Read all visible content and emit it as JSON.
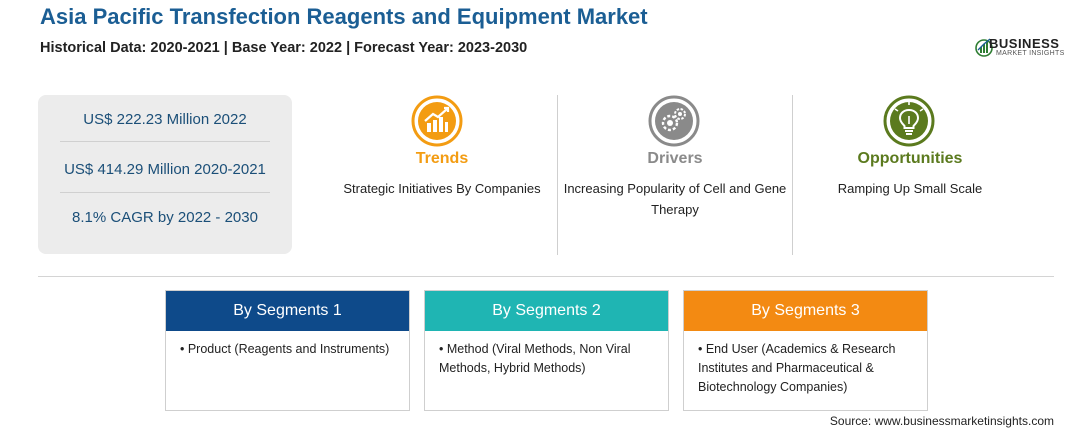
{
  "header": {
    "title": "Asia Pacific Transfection Reagents and Equipment Market",
    "subtitle": "Historical Data: 2020-2021 | Base Year: 2022 | Forecast Year: 2023-2030"
  },
  "logo": {
    "name": "BUSINESS",
    "tagline": "MARKET INSIGHTS"
  },
  "stats": [
    "US$ 222.23 Million 2022",
    "US$ 414.29 Million 2020-2021",
    "8.1% CAGR by 2022 - 2030"
  ],
  "features": [
    {
      "name": "Trends",
      "description": "Strategic Initiatives By Companies",
      "color": "#f39c12",
      "icon": "chart-trend-icon"
    },
    {
      "name": "Drivers",
      "description": "Increasing Popularity of Cell and Gene Therapy",
      "color": "#8a8a8a",
      "icon": "gears-icon"
    },
    {
      "name": "Opportunities",
      "description": "Ramping Up Small Scale",
      "color": "#5b7a1e",
      "icon": "lightbulb-icon"
    }
  ],
  "segments": [
    {
      "title": "By Segments 1",
      "item": "• Product (Reagents and Instruments)",
      "color": "#0e4a8a"
    },
    {
      "title": "By Segments 2",
      "item": "• Method (Viral Methods, Non Viral Methods, Hybrid Methods)",
      "color": "#1fb5b3"
    },
    {
      "title": "By Segments 3",
      "item": "• End User (Academics & Research Institutes and Pharmaceutical & Biotechnology Companies)",
      "color": "#f38a12"
    }
  ],
  "source": "Source: www.businessmarketinsights.com"
}
